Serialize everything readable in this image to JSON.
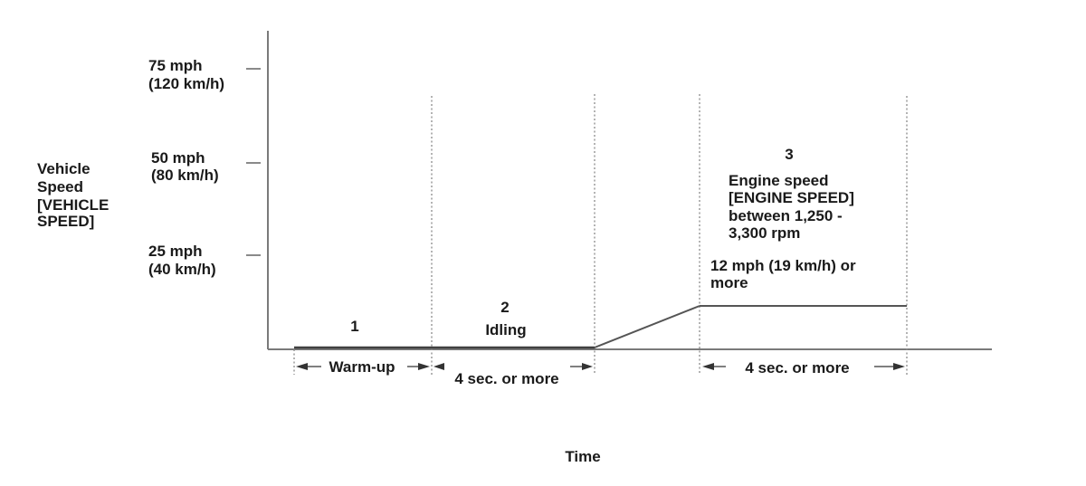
{
  "diagram": {
    "y_axis_label": [
      "Vehicle",
      "Speed",
      "[VEHICLE",
      "SPEED]"
    ],
    "x_axis_label": "Time",
    "y_ticks": [
      {
        "mph": "75 mph",
        "kmh": "(120 km/h)"
      },
      {
        "mph": "50 mph",
        "kmh": "(80 km/h)"
      },
      {
        "mph": "25 mph",
        "kmh": "(40 km/h)"
      }
    ],
    "phases": [
      {
        "number": "1",
        "duration_label": "Warm-up"
      },
      {
        "number": "2",
        "title": "Idling",
        "duration_label": "4 sec. or more"
      },
      {
        "number": "3",
        "note_lines": [
          "Engine speed",
          "[ENGINE SPEED]",
          "between 1,250 -",
          "3,300 rpm"
        ],
        "speed_lines": [
          "12 mph (19 km/h) or",
          "more"
        ],
        "duration_label": "4 sec. or more"
      }
    ]
  }
}
